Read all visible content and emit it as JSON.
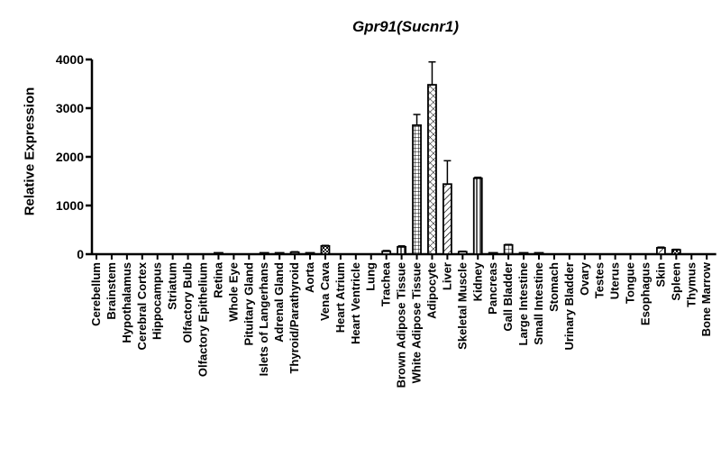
{
  "chart_data": {
    "type": "bar",
    "title": "Gpr91(Sucnr1)",
    "xlabel": "",
    "ylabel": "Relative Expression",
    "ylim": [
      0,
      4000
    ],
    "yticks": [
      "0",
      "1000",
      "2000",
      "3000",
      "4000"
    ],
    "grid": false,
    "legend": "none",
    "categories": [
      "Cerebellum",
      "Brainstem",
      "Hypothalamus",
      "Cerebral Cortex",
      "Hippocampus",
      "Striatum",
      "Olfactory Bulb",
      "Olfactory Epithelium",
      "Retina",
      "Whole Eye",
      "Pituitary Gland",
      "Islets of Langerhans",
      "Adrenal Gland",
      "Thyroid/Parathyroid",
      "Aorta",
      "Vena Cava",
      "Heart Atrium",
      "Heart Ventricle",
      "Lung",
      "Trachea",
      "Brown Adipose Tissue",
      "White Adipose Tissue",
      "Adipocyte",
      "Liver",
      "Skeletal Muscle",
      "Kidney",
      "Pancreas",
      "Gall Bladder",
      "Large Intestine",
      "Small Intestine",
      "Stomach",
      "Urinary Bladder",
      "Ovary",
      "Testes",
      "Uterus",
      "Tongue",
      "Esophagus",
      "Skin",
      "Spleen",
      "Thymus",
      "Bone Marrow"
    ],
    "values": [
      0,
      0,
      0,
      0,
      0,
      0,
      0,
      0,
      5,
      0,
      0,
      10,
      10,
      40,
      5,
      170,
      0,
      0,
      0,
      60,
      150,
      2650,
      3480,
      1440,
      50,
      1560,
      25,
      190,
      5,
      10,
      0,
      0,
      0,
      0,
      0,
      0,
      0,
      130,
      90,
      0,
      0
    ],
    "errors": [
      0,
      0,
      0,
      0,
      0,
      0,
      0,
      0,
      0,
      0,
      0,
      0,
      0,
      10,
      0,
      10,
      0,
      0,
      0,
      15,
      20,
      220,
      470,
      480,
      10,
      20,
      0,
      10,
      0,
      0,
      0,
      0,
      0,
      0,
      0,
      0,
      0,
      15,
      10,
      0,
      0
    ],
    "patterns": [
      "none",
      "none",
      "none",
      "none",
      "none",
      "none",
      "none",
      "none",
      "none",
      "none",
      "none",
      "none",
      "none",
      "none",
      "none",
      "checker",
      "none",
      "none",
      "none",
      "none",
      "vertical",
      "grid",
      "crosshatch",
      "diagonal",
      "none",
      "vertical",
      "none",
      "grid",
      "none",
      "none",
      "none",
      "none",
      "none",
      "none",
      "none",
      "none",
      "none",
      "diagonal",
      "checker",
      "none",
      "none"
    ]
  }
}
